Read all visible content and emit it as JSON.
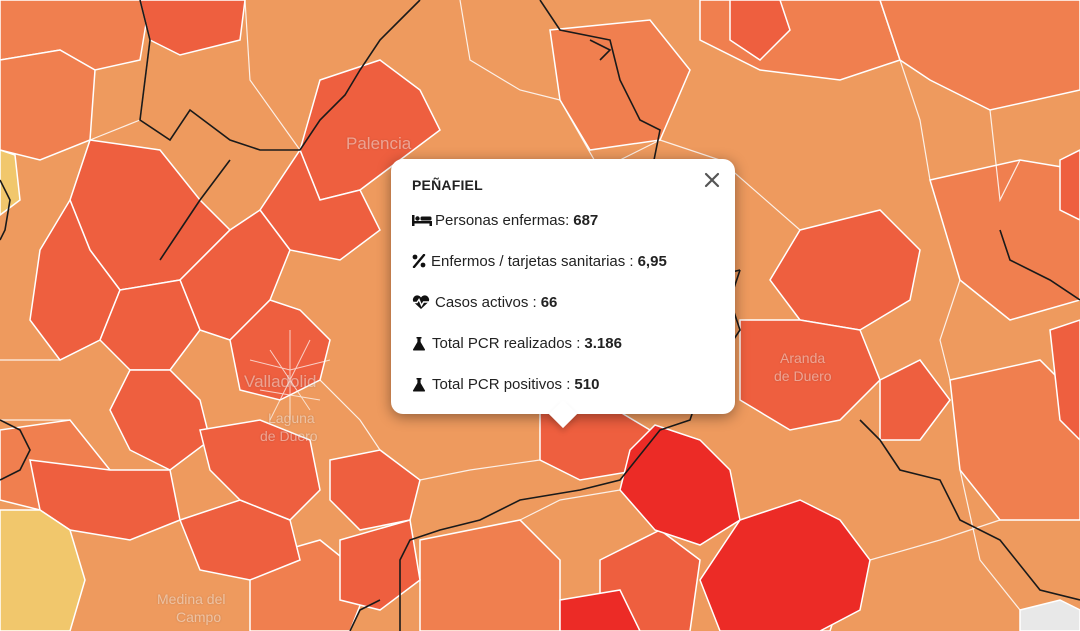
{
  "map": {
    "labels": {
      "palencia": "Palencia",
      "valladolid": "Valladolid",
      "laguna_1": "Laguna",
      "laguna_2": "de Duero",
      "aranda_1": "Aranda",
      "aranda_2": "de Duero",
      "medina_1": "Medina del",
      "medina_2": "Campo"
    },
    "colors": {
      "light": "#ee9a5e",
      "medium": "#f07f4f",
      "high": "#ee5f3f",
      "very_high": "#ec2b26",
      "low": "#f1c76c",
      "lowest": "#f3e6a0",
      "border": "#ffffff",
      "province_border": "#1a1a1a"
    }
  },
  "popup": {
    "title": "PEÑAFIEL",
    "close_icon": "close-icon",
    "rows": [
      {
        "icon": "bed-icon",
        "label": "Personas enfermas:",
        "value": "687"
      },
      {
        "icon": "percent-icon",
        "label": "Enfermos / tarjetas sanitarias :",
        "value": "6,95"
      },
      {
        "icon": "heartbeat-icon",
        "label": "Casos activos :",
        "value": "66"
      },
      {
        "icon": "flask-icon",
        "label": "Total PCR realizados :",
        "value": "3.186"
      },
      {
        "icon": "flask-icon",
        "label": "Total PCR positivos :",
        "value": "510"
      }
    ]
  }
}
